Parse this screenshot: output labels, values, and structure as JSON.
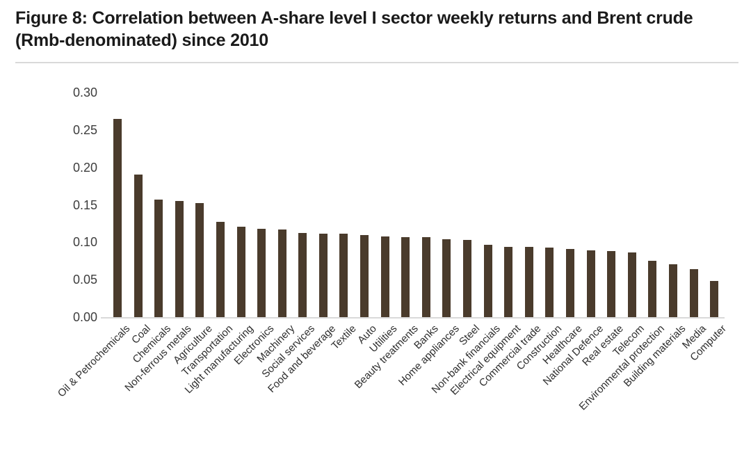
{
  "figure": {
    "title": "Figure 8: Correlation between A-share level I sector weekly returns and Brent crude (Rmb-denominated) since 2010"
  },
  "chart_data": {
    "type": "bar",
    "title": "Figure 8: Correlation between A-share level I sector weekly returns and Brent crude (Rmb-denominated) since 2010",
    "categories": [
      "Oil & Petrochemicals",
      "Coal",
      "Chemicals",
      "Non-ferrous metals",
      "Agriculture",
      "Transportation",
      "Light manufacturing",
      "Electronics",
      "Machinery",
      "Social services",
      "Food and beverage",
      "Textile",
      "Auto",
      "Utilities",
      "Beauty treatments",
      "Banks",
      "Home appliances",
      "Steel",
      "Non-bank financials",
      "Electrical equipment",
      "Commercial trade",
      "Construction",
      "Healthcare",
      "National Defence",
      "Real estate",
      "Telecom",
      "Environmental protection",
      "Building materials",
      "Media",
      "Computer"
    ],
    "values": [
      0.265,
      0.19,
      0.157,
      0.155,
      0.152,
      0.127,
      0.121,
      0.118,
      0.117,
      0.112,
      0.111,
      0.111,
      0.11,
      0.108,
      0.107,
      0.107,
      0.104,
      0.103,
      0.097,
      0.094,
      0.094,
      0.093,
      0.091,
      0.089,
      0.088,
      0.086,
      0.075,
      0.071,
      0.064,
      0.048
    ],
    "xlabel": "",
    "ylabel": "",
    "ylim": [
      0,
      0.3
    ],
    "yticks": [
      0.0,
      0.05,
      0.1,
      0.15,
      0.2,
      0.25,
      0.3
    ],
    "ytick_decimals": 2,
    "grid": false,
    "legend_position": "none",
    "bar_color": "#4a3b2c",
    "axis_tick_color": "#3d3d3d",
    "category_label_color": "#2e2e2e",
    "title_color": "#1a1a1a",
    "divider_color": "#d9d9d9",
    "baseline_color": "#d9d9d9",
    "category_label_rotation_deg": -45
  }
}
